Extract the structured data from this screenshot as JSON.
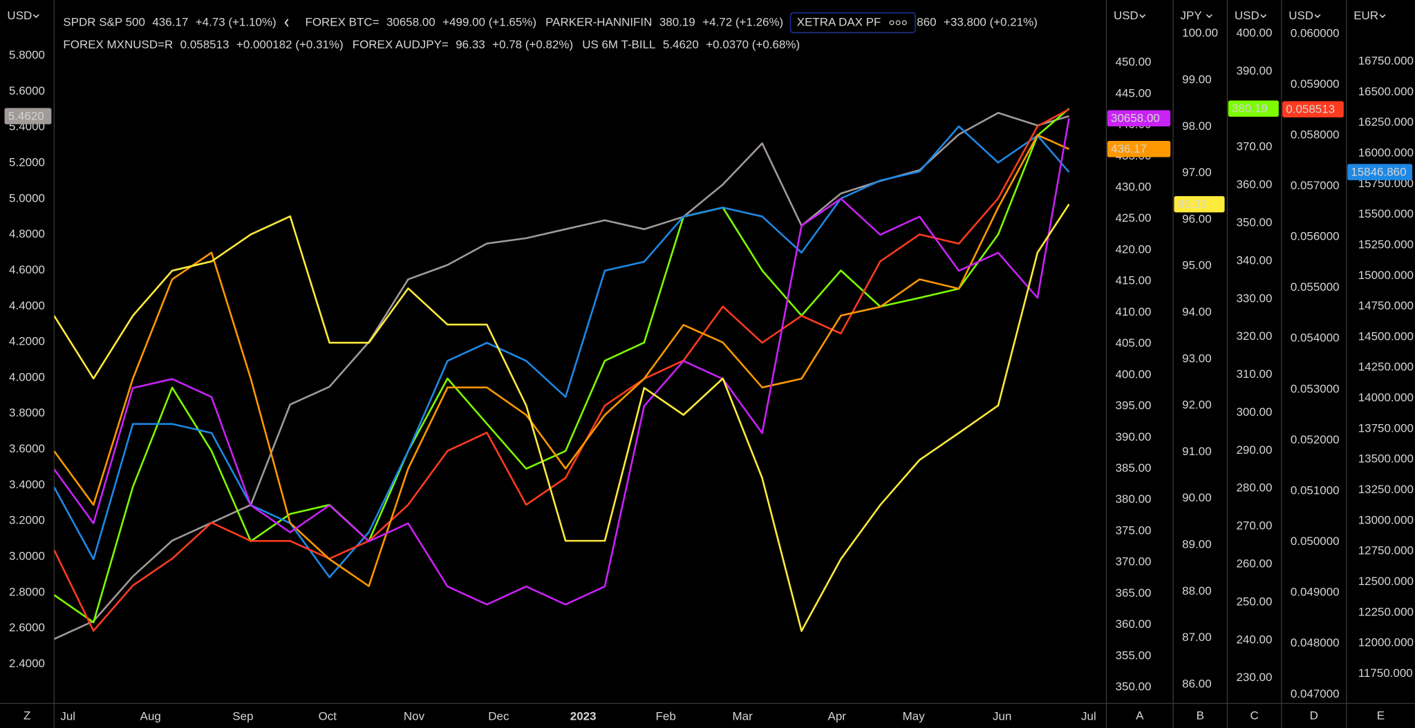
{
  "chart_data": {
    "type": "line",
    "xlim": [
      0,
      53.5
    ],
    "xticks": [
      {
        "value": 0.7,
        "label": "Jul"
      },
      {
        "value": 4.9,
        "label": "Aug"
      },
      {
        "value": 9.6,
        "label": "Sep"
      },
      {
        "value": 13.9,
        "label": "Oct"
      },
      {
        "value": 18.3,
        "label": "Nov"
      },
      {
        "value": 22.6,
        "label": "Dec"
      },
      {
        "value": 26.9,
        "label": "2023"
      },
      {
        "value": 31.1,
        "label": "Feb"
      },
      {
        "value": 35,
        "label": "Mar"
      },
      {
        "value": 39.8,
        "label": "Apr"
      },
      {
        "value": 43.7,
        "label": "May"
      },
      {
        "value": 48.2,
        "label": "Jun"
      },
      {
        "value": 52.6,
        "label": "Jul"
      }
    ],
    "x": [
      0,
      2,
      4,
      6,
      8,
      10,
      12,
      14,
      16,
      18,
      20,
      22,
      24,
      26,
      28,
      30,
      32,
      34,
      36,
      38,
      40,
      42,
      44,
      46,
      48,
      50,
      51.6
    ],
    "axes": [
      {
        "id": "Z",
        "unit": "USD",
        "ylim": [
          2.18,
          6.11
        ],
        "yticks": [
          {
            "value": 2.4,
            "label": "2.4000"
          },
          {
            "value": 2.6,
            "label": "2.6000"
          },
          {
            "value": 2.8,
            "label": "2.8000"
          },
          {
            "value": 3.0,
            "label": "3.0000"
          },
          {
            "value": 3.2,
            "label": "3.2000"
          },
          {
            "value": 3.4,
            "label": "3.4000"
          },
          {
            "value": 3.6,
            "label": "3.6000"
          },
          {
            "value": 3.8,
            "label": "3.8000"
          },
          {
            "value": 4.0,
            "label": "4.0000"
          },
          {
            "value": 4.2,
            "label": "4.2000"
          },
          {
            "value": 4.4,
            "label": "4.4000"
          },
          {
            "value": 4.6,
            "label": "4.6000"
          },
          {
            "value": 4.8,
            "label": "4.8000"
          },
          {
            "value": 5.0,
            "label": "5.0000"
          },
          {
            "value": 5.2,
            "label": "5.2000"
          },
          {
            "value": 5.4,
            "label": "5.4000"
          },
          {
            "value": 5.6,
            "label": "5.6000"
          },
          {
            "value": 5.8,
            "label": "5.8000"
          }
        ]
      },
      {
        "id": "A",
        "unit": "USD",
        "ylim": [
          347.4,
          460
        ],
        "yticks": [
          {
            "value": 350,
            "label": "350.00"
          },
          {
            "value": 355,
            "label": "355.00"
          },
          {
            "value": 360,
            "label": "360.00"
          },
          {
            "value": 365,
            "label": "365.00"
          },
          {
            "value": 370,
            "label": "370.00"
          },
          {
            "value": 375,
            "label": "375.00"
          },
          {
            "value": 380,
            "label": "380.00"
          },
          {
            "value": 385,
            "label": "385.00"
          },
          {
            "value": 390,
            "label": "390.00"
          },
          {
            "value": 395,
            "label": "395.00"
          },
          {
            "value": 400,
            "label": "400.00"
          },
          {
            "value": 405,
            "label": "405.00"
          },
          {
            "value": 410,
            "label": "410.00"
          },
          {
            "value": 415,
            "label": "415.00"
          },
          {
            "value": 420,
            "label": "420.00"
          },
          {
            "value": 425,
            "label": "425.00"
          },
          {
            "value": 430,
            "label": "430.00"
          },
          {
            "value": 435,
            "label": "435.00"
          },
          {
            "value": 440,
            "label": "440.00"
          },
          {
            "value": 445,
            "label": "445.00"
          },
          {
            "value": 450,
            "label": "450.00"
          }
        ]
      },
      {
        "id": "B",
        "unit": "JPY",
        "ylim": [
          85.59,
          100.72
        ],
        "yticks": [
          {
            "value": 86,
            "label": "86.00"
          },
          {
            "value": 87,
            "label": "87.00"
          },
          {
            "value": 88,
            "label": "88.00"
          },
          {
            "value": 89,
            "label": "89.00"
          },
          {
            "value": 90,
            "label": "90.00"
          },
          {
            "value": 91,
            "label": "91.00"
          },
          {
            "value": 92,
            "label": "92.00"
          },
          {
            "value": 93,
            "label": "93.00"
          },
          {
            "value": 94,
            "label": "94.00"
          },
          {
            "value": 95,
            "label": "95.00"
          },
          {
            "value": 96,
            "label": "96.00"
          },
          {
            "value": 97,
            "label": "97.00"
          },
          {
            "value": 98,
            "label": "98.00"
          },
          {
            "value": 99,
            "label": "99.00"
          },
          {
            "value": 100,
            "label": "100.00"
          }
        ]
      },
      {
        "id": "C",
        "unit": "USD",
        "ylim": [
          223.3,
          408.8
        ],
        "yticks": [
          {
            "value": 230,
            "label": "230.00"
          },
          {
            "value": 240,
            "label": "240.00"
          },
          {
            "value": 250,
            "label": "250.00"
          },
          {
            "value": 260,
            "label": "260.00"
          },
          {
            "value": 270,
            "label": "270.00"
          },
          {
            "value": 280,
            "label": "280.00"
          },
          {
            "value": 290,
            "label": "290.00"
          },
          {
            "value": 300,
            "label": "300.00"
          },
          {
            "value": 310,
            "label": "310.00"
          },
          {
            "value": 320,
            "label": "320.00"
          },
          {
            "value": 330,
            "label": "330.00"
          },
          {
            "value": 340,
            "label": "340.00"
          },
          {
            "value": 350,
            "label": "350.00"
          },
          {
            "value": 360,
            "label": "360.00"
          },
          {
            "value": 370,
            "label": "370.00"
          },
          {
            "value": 380,
            "label": "380.00"
          },
          {
            "value": 390,
            "label": "390.00"
          },
          {
            "value": 400,
            "label": "400.00"
          }
        ]
      },
      {
        "id": "D",
        "unit": "USD",
        "ylim": [
          0.04682,
          0.06066
        ],
        "yticks": [
          {
            "value": 0.047,
            "label": "0.047000"
          },
          {
            "value": 0.048,
            "label": "0.048000"
          },
          {
            "value": 0.049,
            "label": "0.049000"
          },
          {
            "value": 0.05,
            "label": "0.050000"
          },
          {
            "value": 0.051,
            "label": "0.051000"
          },
          {
            "value": 0.052,
            "label": "0.052000"
          },
          {
            "value": 0.053,
            "label": "0.053000"
          },
          {
            "value": 0.054,
            "label": "0.054000"
          },
          {
            "value": 0.055,
            "label": "0.055000"
          },
          {
            "value": 0.056,
            "label": "0.056000"
          },
          {
            "value": 0.057,
            "label": "0.057000"
          },
          {
            "value": 0.058,
            "label": "0.058000"
          },
          {
            "value": 0.059,
            "label": "0.059000"
          },
          {
            "value": 0.06,
            "label": "0.060000"
          }
        ]
      },
      {
        "id": "E",
        "unit": "EUR",
        "ylim": [
          11507,
          17251
        ],
        "yticks": [
          {
            "value": 11750,
            "label": "11750.000"
          },
          {
            "value": 12000,
            "label": "12000.000"
          },
          {
            "value": 12250,
            "label": "12250.000"
          },
          {
            "value": 12500,
            "label": "12500.000"
          },
          {
            "value": 12750,
            "label": "12750.000"
          },
          {
            "value": 13000,
            "label": "13000.000"
          },
          {
            "value": 13250,
            "label": "13250.000"
          },
          {
            "value": 13500,
            "label": "13500.000"
          },
          {
            "value": 13750,
            "label": "13750.000"
          },
          {
            "value": 14000,
            "label": "14000.000"
          },
          {
            "value": 14250,
            "label": "14250.000"
          },
          {
            "value": 14500,
            "label": "14500.000"
          },
          {
            "value": 14750,
            "label": "14750.000"
          },
          {
            "value": 15000,
            "label": "15000.000"
          },
          {
            "value": 15250,
            "label": "15250.000"
          },
          {
            "value": 15500,
            "label": "15500.000"
          },
          {
            "value": 15750,
            "label": "15750.000"
          },
          {
            "value": 16000,
            "label": "16000.000"
          },
          {
            "value": 16250,
            "label": "16250.000"
          },
          {
            "value": 16500,
            "label": "16500.000"
          },
          {
            "value": 16750,
            "label": "16750.000"
          }
        ]
      }
    ],
    "series": [
      {
        "name": "SPDR S&P 500",
        "color": "#ff9800",
        "axis": "A",
        "price_label": "436.17",
        "change": "+4.73 (+1.10%)",
        "values": [
          387.8,
          379.2,
          399.4,
          415.3,
          419.6,
          399.4,
          376.3,
          370.5,
          366.2,
          385.0,
          398.0,
          398.0,
          393.6,
          385.0,
          393.6,
          399.4,
          408.0,
          405.2,
          398.0,
          399.4,
          409.5,
          410.9,
          415.3,
          413.8,
          426.8,
          438.4,
          436.17
        ]
      },
      {
        "name": "FOREX BTC=",
        "color": "#c822f5",
        "axis": "A",
        "ylim": [
          14146,
          33991
        ],
        "price_label": "30658.00",
        "change": "+499.00 (+1.65%)",
        "values": [
          20757,
          19230,
          23048,
          23302,
          22793,
          19739,
          18975,
          19739,
          18721,
          19230,
          17448,
          16940,
          17448,
          16940,
          17448,
          22539,
          23811,
          23302,
          21775,
          27629,
          28392,
          27374,
          27883,
          26356,
          26865,
          25592,
          30658
        ]
      },
      {
        "name": "PARKER-HANNIFIN",
        "color": "#7cfc00",
        "axis": "C",
        "price_label": "380.19",
        "change": "+4.72 (+1.26%)",
        "values": [
          251.9,
          244.7,
          280.4,
          306.6,
          289.9,
          266.1,
          273.3,
          275.7,
          266.1,
          289.9,
          309.0,
          297.1,
          285.2,
          289.9,
          313.7,
          318.5,
          351.7,
          354.1,
          337.5,
          325.6,
          337.5,
          328.0,
          330.3,
          332.7,
          347.0,
          373.1,
          380.19
        ]
      },
      {
        "name": "XETRA DAX PF",
        "color": "#1e88e5",
        "axis": "E",
        "price_label": "15846.860",
        "change": "+33.800 (+0.21%)",
        "values": [
          13274,
          12685,
          13790,
          13790,
          13716,
          13127,
          12980,
          12538,
          12906,
          13569,
          14305,
          14453,
          14305,
          14011,
          15042,
          15115,
          15484,
          15557,
          15484,
          15189,
          15631,
          15778,
          15852,
          16220,
          15925,
          16146,
          15846.86
        ]
      },
      {
        "name": "FOREX MXNUSD=R",
        "color": "#ff3b1f",
        "axis": "D",
        "price_label": "0.058513",
        "change": "+0.000182 (+0.31%)",
        "values": [
          0.04984,
          0.04825,
          0.04914,
          0.04967,
          0.05038,
          0.05002,
          0.05002,
          0.04967,
          0.05002,
          0.05073,
          0.05179,
          0.05215,
          0.05073,
          0.05126,
          0.05268,
          0.05321,
          0.05357,
          0.05463,
          0.05392,
          0.05445,
          0.0541,
          0.05552,
          0.05605,
          0.05587,
          0.05676,
          0.05818,
          0.058513
        ]
      },
      {
        "name": "FOREX AUDJPY=",
        "color": "#ffeb3b",
        "axis": "B",
        "price_label": "96.33",
        "change": "+0.78 (+0.82%)",
        "values": [
          93.93,
          92.58,
          93.93,
          94.9,
          95.1,
          95.68,
          96.07,
          93.35,
          93.35,
          94.52,
          93.74,
          93.74,
          92.0,
          89.09,
          89.09,
          92.38,
          91.8,
          92.58,
          90.44,
          87.15,
          88.7,
          89.86,
          90.83,
          91.41,
          92.0,
          95.29,
          96.33
        ]
      },
      {
        "name": "US 6M T-BILL",
        "color": "#a09a98",
        "axis": "Z",
        "price_label": "5.4620",
        "change": "+0.0370 (+0.68%)",
        "values": [
          2.54,
          2.64,
          2.89,
          3.09,
          3.19,
          3.29,
          3.85,
          3.95,
          4.2,
          4.55,
          4.63,
          4.75,
          4.78,
          4.83,
          4.88,
          4.83,
          4.9,
          5.08,
          5.31,
          4.85,
          5.03,
          5.1,
          5.16,
          5.36,
          5.48,
          5.41,
          5.462
        ]
      }
    ]
  }
}
